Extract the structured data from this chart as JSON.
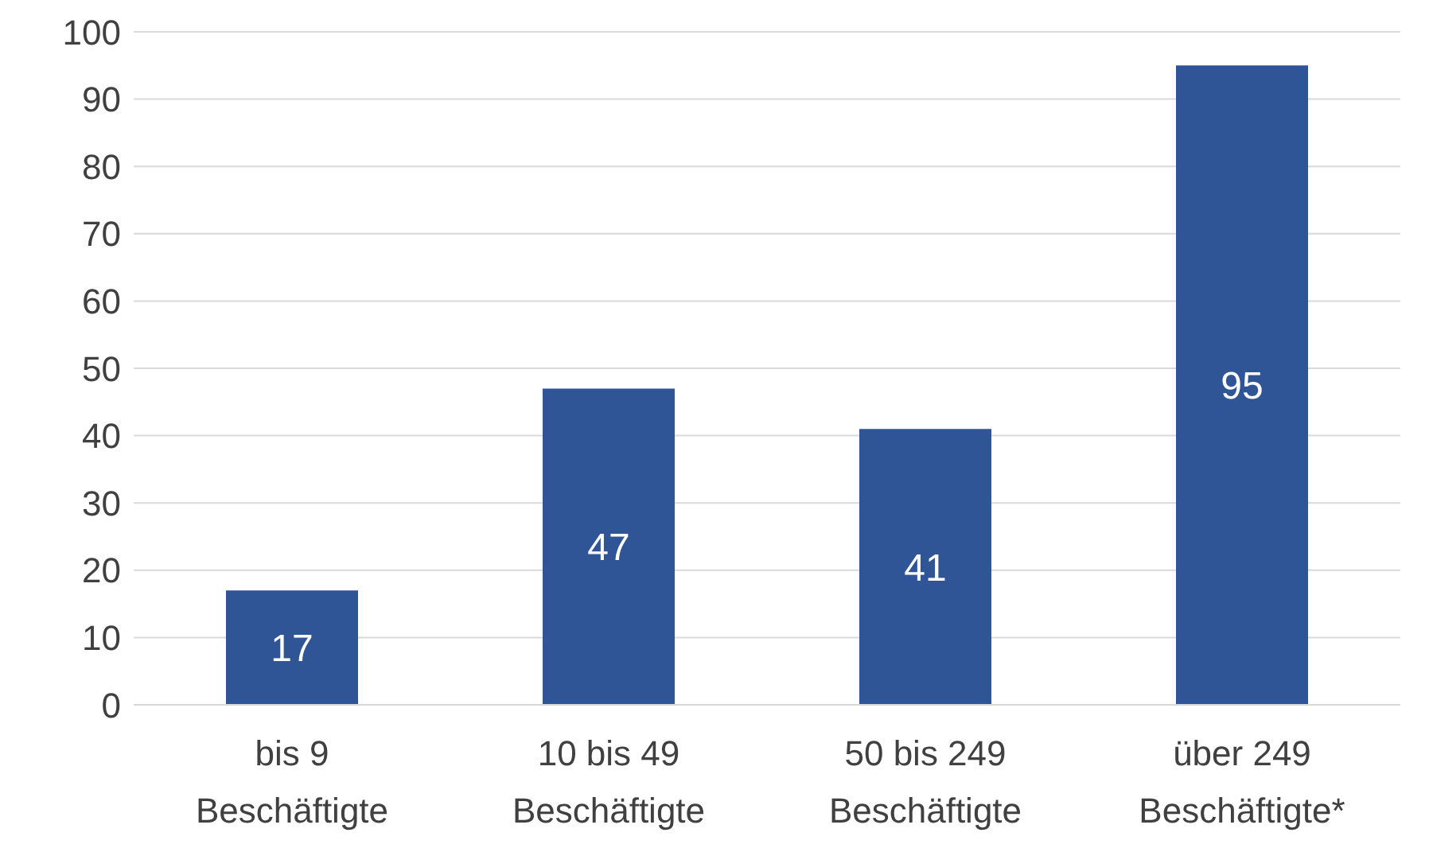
{
  "chart_data": {
    "type": "bar",
    "categories": [
      "bis 9 Beschäftigte",
      "10 bis 49 Beschäftigte",
      "50 bis 249 Beschäftigte",
      "über 249 Beschäftigte*"
    ],
    "values": [
      17,
      47,
      41,
      95
    ],
    "color": "#2f5597",
    "ylim": [
      0,
      100
    ],
    "yticks": [
      0,
      10,
      20,
      30,
      40,
      50,
      60,
      70,
      80,
      90,
      100
    ],
    "grid": "y",
    "data_labels": true
  }
}
